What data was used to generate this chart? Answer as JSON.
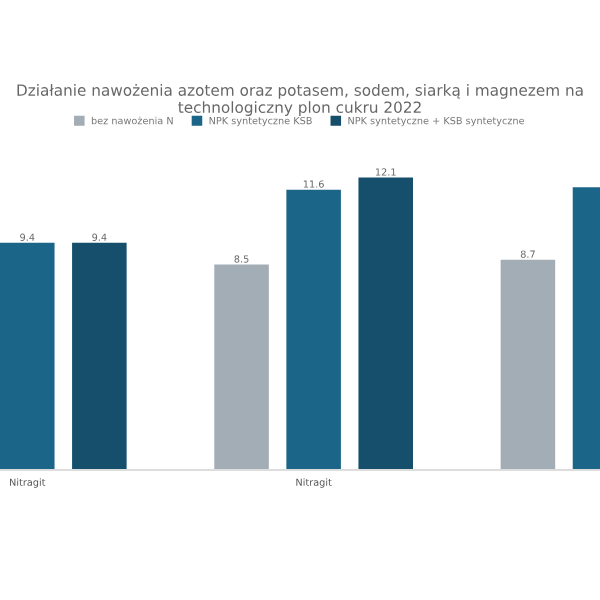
{
  "chart_data": {
    "type": "bar",
    "title": "Działanie nawożenia azotem oraz potasem, sodem, siarką i magnezem na technologiczny plon cukru 2022",
    "categories": [
      "Nitragit",
      "Nitragit",
      null
    ],
    "series": [
      {
        "name": "bez nawożenia N",
        "color": "#a3adb6",
        "values": [
          null,
          8.5,
          8.7
        ],
        "value_labels": [
          null,
          "8.5",
          "8.7"
        ]
      },
      {
        "name": "NPK syntetyczne KSB",
        "color": "#1b6688",
        "values": [
          9.4,
          11.6,
          11.7
        ],
        "value_labels": [
          "9.4",
          "11.6",
          null
        ]
      },
      {
        "name": "NPK syntetyczne + KSB syntetyczne",
        "color": "#154f6b",
        "values": [
          9.4,
          12.1,
          null
        ],
        "value_labels": [
          "9.4",
          "12.1",
          null
        ]
      }
    ],
    "legend": "top",
    "grid": false
  }
}
